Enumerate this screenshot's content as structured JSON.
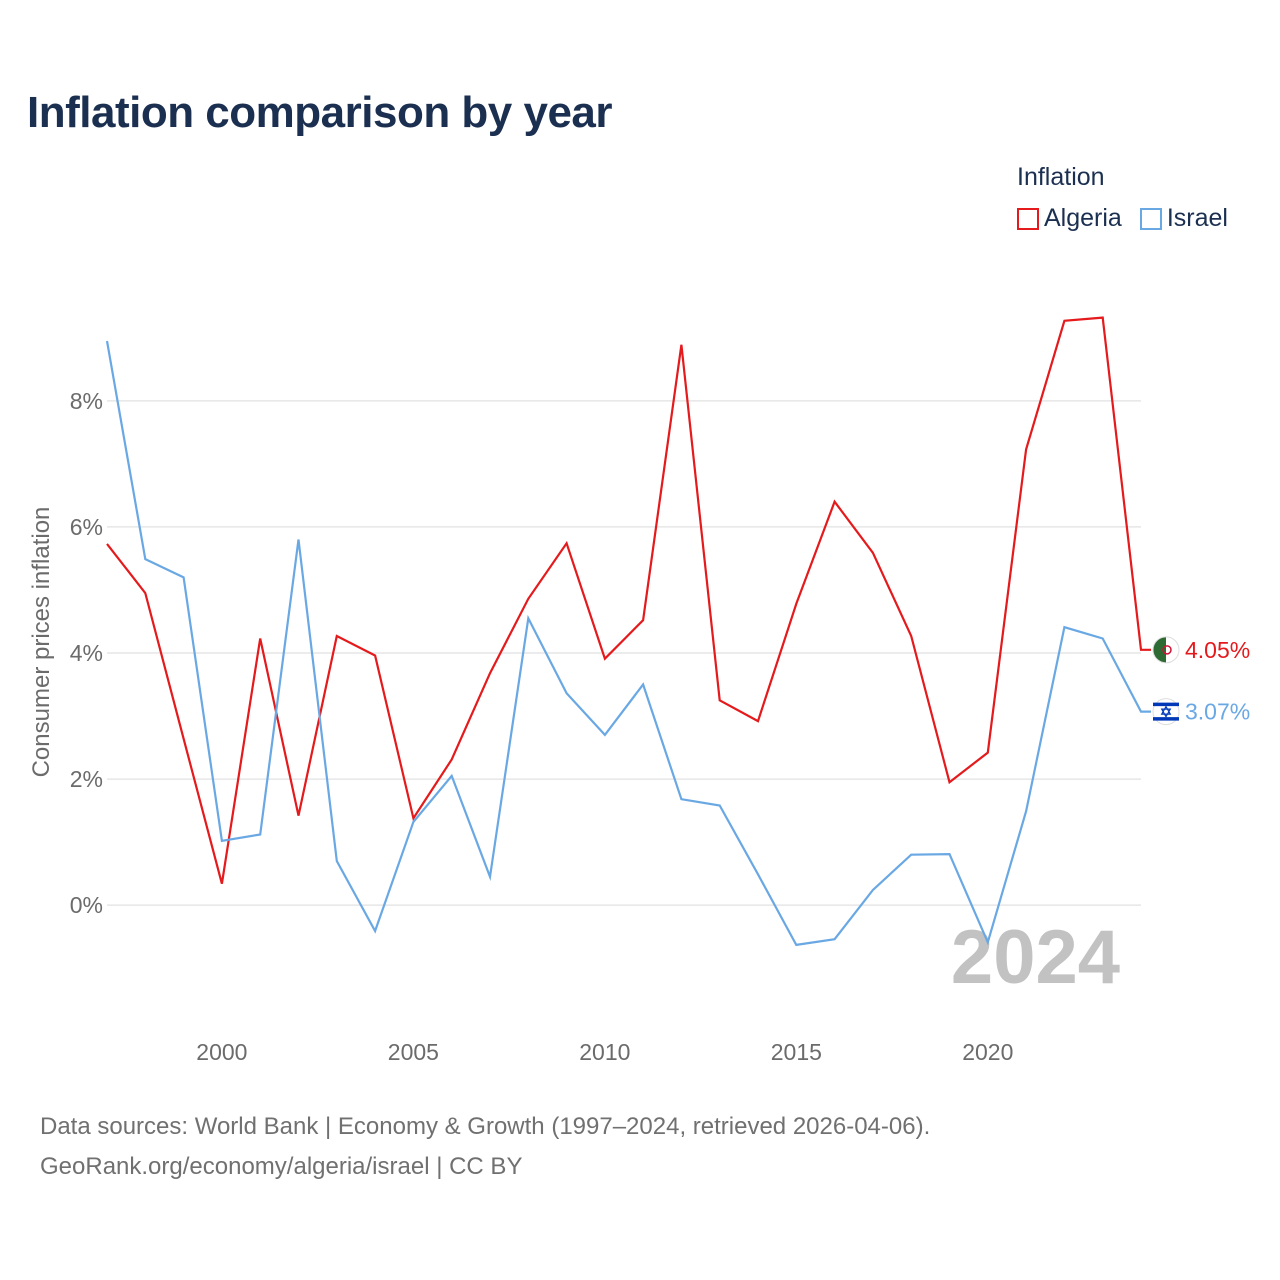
{
  "title": "Inflation comparison by year",
  "legend": {
    "title": "Inflation",
    "items": [
      {
        "label": "Algeria",
        "color": "#e41a1c"
      },
      {
        "label": "Israel",
        "color": "#6aa8e4"
      }
    ]
  },
  "source": {
    "line1": "Data sources: World Bank | Economy & Growth (1997–2024, retrieved 2026-04-06).",
    "line2": "GeoRank.org/economy/algeria/israel | CC BY"
  },
  "chart_data": {
    "type": "line",
    "title": "Inflation comparison by year",
    "xlabel": "",
    "ylabel": "Consumer prices inflation",
    "year_watermark": "2024",
    "x": [
      1997,
      1998,
      1999,
      2000,
      2001,
      2002,
      2003,
      2004,
      2005,
      2006,
      2007,
      2008,
      2009,
      2010,
      2011,
      2012,
      2013,
      2014,
      2015,
      2016,
      2017,
      2018,
      2019,
      2020,
      2021,
      2022,
      2023,
      2024
    ],
    "xlim": [
      1997,
      2024
    ],
    "ylim": [
      -1.6,
      9.6
    ],
    "x_ticks": [
      2000,
      2005,
      2010,
      2015,
      2020
    ],
    "y_ticks": [
      0,
      2,
      4,
      6,
      8
    ],
    "y_tick_labels": [
      "0%",
      "2%",
      "4%",
      "6%",
      "8%"
    ],
    "grid": true,
    "legend_position": "top-right",
    "series": [
      {
        "name": "Algeria",
        "color": "#e41a1c",
        "end_label": "4.05%",
        "values": [
          5.73,
          4.95,
          2.64,
          0.34,
          4.23,
          1.42,
          4.27,
          3.96,
          1.38,
          2.31,
          3.68,
          4.86,
          5.74,
          3.91,
          4.52,
          8.89,
          3.25,
          2.92,
          4.78,
          6.4,
          5.59,
          4.27,
          1.95,
          2.42,
          7.23,
          9.27,
          9.32,
          4.05
        ]
      },
      {
        "name": "Israel",
        "color": "#6aa8e4",
        "end_label": "3.07%",
        "values": [
          8.95,
          5.49,
          5.2,
          1.02,
          1.12,
          5.8,
          0.7,
          -0.41,
          1.32,
          2.05,
          0.45,
          4.55,
          3.36,
          2.7,
          3.5,
          1.68,
          1.58,
          0.49,
          -0.63,
          -0.54,
          0.24,
          0.8,
          0.81,
          -0.59,
          1.49,
          4.41,
          4.23,
          3.07
        ]
      }
    ]
  }
}
